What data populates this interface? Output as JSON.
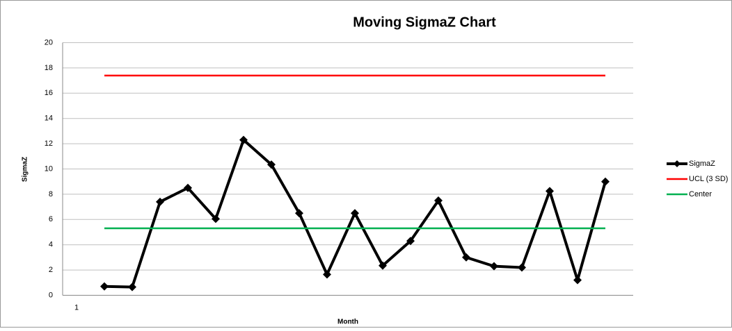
{
  "chart_data": {
    "type": "line",
    "title": "Moving SigmaZ Chart",
    "x_label": "Month",
    "y_label": "SigmaZ",
    "categories": [
      "1",
      null,
      null,
      null,
      null,
      null,
      null,
      null,
      null,
      null,
      null,
      null,
      null,
      null,
      null,
      null,
      null,
      null,
      null,
      null
    ],
    "series": [
      {
        "name": "SigmaZ",
        "color": "#000000",
        "marker": "diamond",
        "values": [
          null,
          0.7,
          0.65,
          7.4,
          8.5,
          6.05,
          12.3,
          10.35,
          6.5,
          1.65,
          6.5,
          2.35,
          4.3,
          7.5,
          3.0,
          2.3,
          2.2,
          8.25,
          1.2,
          9.0
        ]
      },
      {
        "name": "UCL (3 SD)",
        "color": "#ff0000",
        "values": [
          null,
          17.4,
          17.4,
          17.4,
          17.4,
          17.4,
          17.4,
          17.4,
          17.4,
          17.4,
          17.4,
          17.4,
          17.4,
          17.4,
          17.4,
          17.4,
          17.4,
          17.4,
          17.4,
          17.4
        ]
      },
      {
        "name": "Center",
        "color": "#00b050",
        "values": [
          null,
          5.3,
          5.3,
          5.3,
          5.3,
          5.3,
          5.3,
          5.3,
          5.3,
          5.3,
          5.3,
          5.3,
          5.3,
          5.3,
          5.3,
          5.3,
          5.3,
          5.3,
          5.3,
          5.3
        ]
      }
    ],
    "ylim": [
      0,
      20
    ],
    "yticks": [
      0,
      2,
      4,
      6,
      8,
      10,
      12,
      14,
      16,
      18,
      20
    ],
    "grid": true,
    "legend": "right"
  }
}
